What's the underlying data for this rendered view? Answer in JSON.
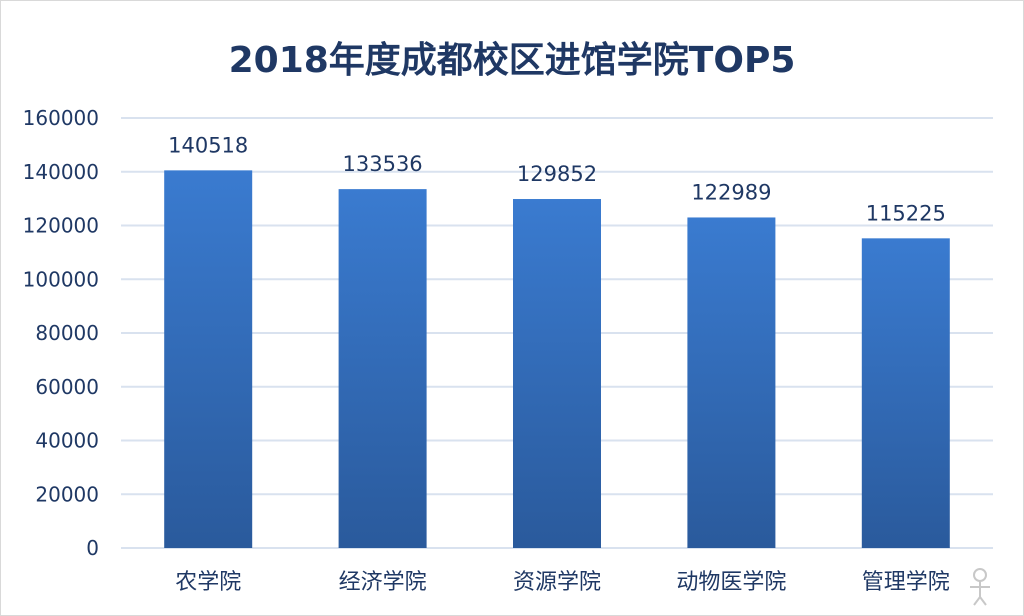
{
  "chart_data": {
    "type": "bar",
    "title": "2018年度成都校区进馆学院TOP5",
    "xlabel": "",
    "ylabel": "",
    "categories": [
      "农学院",
      "经济学院",
      "资源学院",
      "动物医学院",
      "管理学院"
    ],
    "values": [
      140518,
      133536,
      129852,
      122989,
      115225
    ],
    "ylim": [
      0,
      160000
    ],
    "yticks": [
      0,
      20000,
      40000,
      60000,
      80000,
      100000,
      120000,
      140000,
      160000
    ],
    "grid": true,
    "legend": "none",
    "data_labels": true,
    "colors": {
      "bar_top": "#3a7bd0",
      "bar_bottom": "#2a5a9c",
      "axis_text": "#1f3864",
      "grid": "#d9e2ef",
      "title": "#1f3864"
    }
  }
}
